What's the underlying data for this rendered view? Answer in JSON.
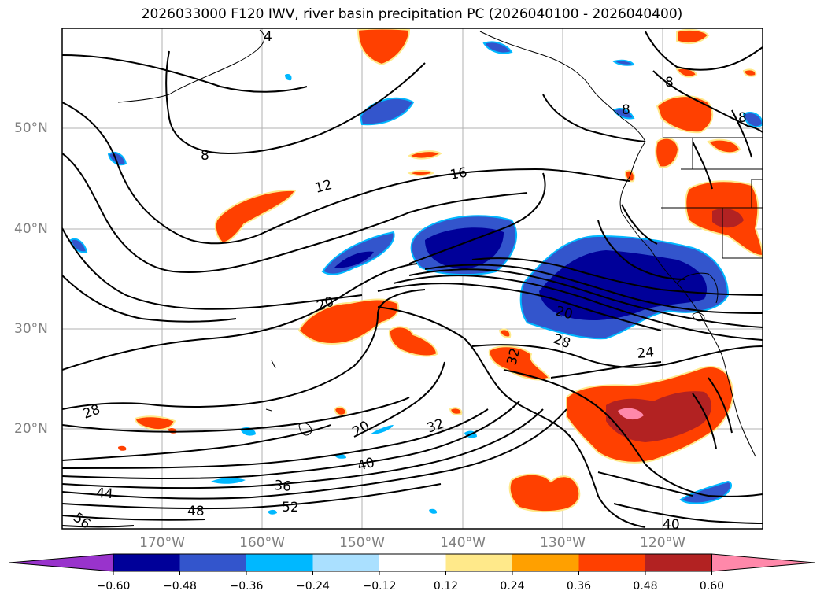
{
  "title": "2026033000 F120 IWV, river basin precipitation PC (2026040100 - 2026040400)",
  "latitude_labels": [
    "50°N",
    "40°N",
    "30°N",
    "20°N"
  ],
  "longitude_labels": [
    "170°W",
    "160°W",
    "150°W",
    "140°W",
    "130°W",
    "120°W"
  ],
  "colorbar": {
    "tick_labels": [
      "−0.60",
      "−0.48",
      "−0.36",
      "−0.24",
      "−0.12",
      "0.12",
      "0.24",
      "0.36",
      "0.48",
      "0.60"
    ],
    "colors": [
      "#9933cc",
      "#000099",
      "#3355cc",
      "#00b8ff",
      "#aae0ff",
      "#ffffff",
      "#ffe98a",
      "#ffa000",
      "#ff4000",
      "#b22222",
      "#ff88aa"
    ]
  },
  "contour_labels": [
    "4",
    "8",
    "8",
    "8",
    "8",
    "12",
    "16",
    "20",
    "20",
    "20",
    "24",
    "28",
    "28",
    "32",
    "32",
    "36",
    "40",
    "40",
    "44",
    "48",
    "52",
    "56"
  ]
}
